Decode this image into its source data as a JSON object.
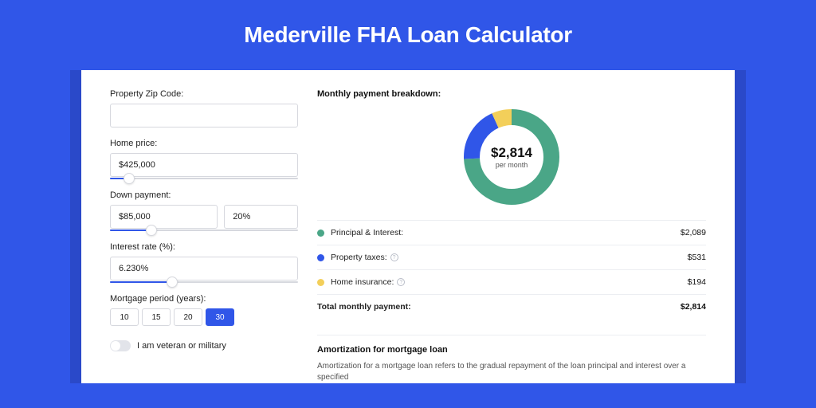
{
  "page": {
    "title": "Mederville FHA Loan Calculator",
    "background_color": "#3056e8",
    "shadow_color": "#2a49c9",
    "card_color": "#ffffff"
  },
  "form": {
    "zip": {
      "label": "Property Zip Code:",
      "value": ""
    },
    "home_price": {
      "label": "Home price:",
      "value": "$425,000",
      "slider_pct": 10
    },
    "down_payment": {
      "label": "Down payment:",
      "amount": "$85,000",
      "percent": "20%",
      "slider_pct": 22
    },
    "interest_rate": {
      "label": "Interest rate (%):",
      "value": "6.230%",
      "slider_pct": 33
    },
    "mortgage_period": {
      "label": "Mortgage period (years):",
      "options": [
        "10",
        "15",
        "20",
        "30"
      ],
      "selected": "30"
    },
    "veteran": {
      "label": "I am veteran or military",
      "enabled": false
    }
  },
  "breakdown": {
    "heading": "Monthly payment breakdown:",
    "donut": {
      "amount": "$2,814",
      "sub": "per month",
      "slices": [
        {
          "key": "principal_interest",
          "color": "#4aa687",
          "fraction": 0.742
        },
        {
          "key": "property_taxes",
          "color": "#3056e8",
          "fraction": 0.189
        },
        {
          "key": "home_insurance",
          "color": "#f3cf5a",
          "fraction": 0.069
        }
      ],
      "stroke_width": 20,
      "radius": 50
    },
    "legend": [
      {
        "label": "Principal & Interest:",
        "color": "#4aa687",
        "value": "$2,089",
        "info": false
      },
      {
        "label": "Property taxes:",
        "color": "#3056e8",
        "value": "$531",
        "info": true
      },
      {
        "label": "Home insurance:",
        "color": "#f3cf5a",
        "value": "$194",
        "info": true
      }
    ],
    "total": {
      "label": "Total monthly payment:",
      "value": "$2,814"
    }
  },
  "amortization": {
    "heading": "Amortization for mortgage loan",
    "body": "Amortization for a mortgage loan refers to the gradual repayment of the loan principal and interest over a specified"
  }
}
